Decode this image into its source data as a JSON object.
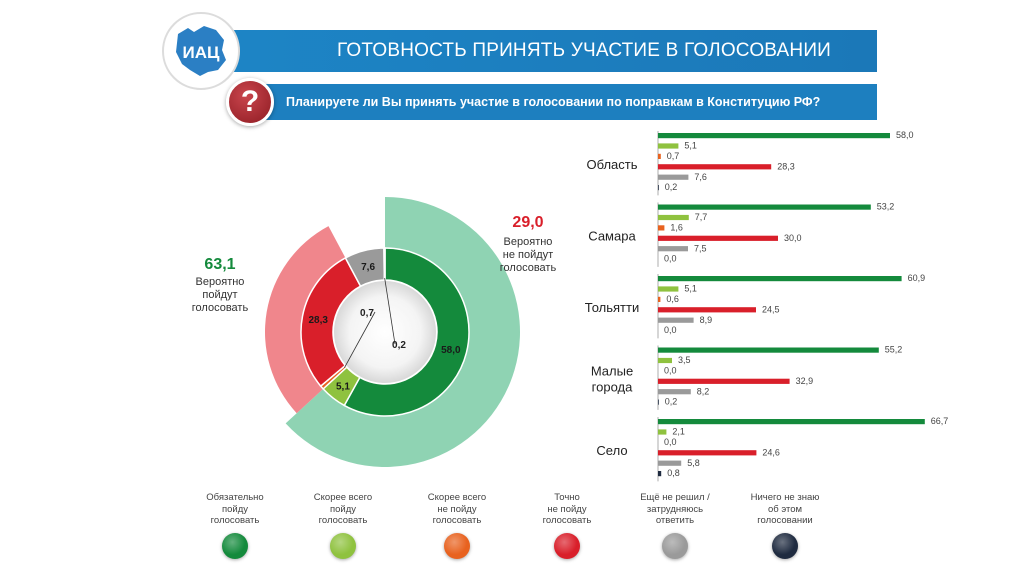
{
  "header": {
    "logo_text": "ИАЦ",
    "title": "ГОТОВНОСТЬ ПРИНЯТЬ УЧАСТИЕ В ГОЛОСОВАНИИ",
    "question_icon": "?",
    "question": "Планируете ли Вы принять участие в голосовании по поправкам в Конституцию РФ?"
  },
  "colors": {
    "brand_blue": "#1d85c6",
    "dark_green": "#148a3c",
    "light_green": "#8fc23f",
    "orange": "#e8621f",
    "red": "#d91f2a",
    "grey": "#9a9a9a",
    "navy": "#1f2b40",
    "outer_green": "#8fd3b3",
    "outer_red": "#f0868c"
  },
  "summary": {
    "likely_yes_value": "63,1",
    "likely_yes_text": [
      "Вероятно",
      "пойдут",
      "голосовать"
    ],
    "likely_no_value": "29,0",
    "likely_no_text": [
      "Вероятно",
      "не пойдут",
      "голосовать"
    ]
  },
  "legend": [
    {
      "label": [
        "Обязательно",
        "пойду",
        "голосовать"
      ],
      "color": "#148a3c"
    },
    {
      "label": [
        "Скорее всего",
        "пойду",
        "голосовать"
      ],
      "color": "#8fc23f"
    },
    {
      "label": [
        "Скорее всего",
        "не пойду",
        "голосовать"
      ],
      "color": "#e8621f"
    },
    {
      "label": [
        "Точно",
        "не пойду",
        "голосовать"
      ],
      "color": "#d91f2a"
    },
    {
      "label": [
        "Ещё не решил /",
        "затрудняюсь",
        "ответить"
      ],
      "color": "#9a9a9a"
    },
    {
      "label": [
        "Ничего не знаю",
        "об этом",
        "голосовании"
      ],
      "color": "#1f2b40"
    }
  ],
  "chart_data": [
    {
      "type": "pie",
      "title": "Область (кольцевая диаграмма)",
      "inner_ring": {
        "categories": [
          "Обязательно пойду голосовать",
          "Скорее всего пойду голосовать",
          "Скорее всего не пойду голосовать",
          "Точно не пойду голосовать",
          "Ещё не решил / затрудняюсь ответить",
          "Ничего не знаю об этом голосовании"
        ],
        "values": [
          58.0,
          5.1,
          0.7,
          28.3,
          7.6,
          0.2
        ],
        "labels": [
          "58,0",
          "5,1",
          "0,7",
          "28,3",
          "7,6",
          "0,2"
        ]
      },
      "outer_ring": {
        "categories": [
          "Вероятно пойдут голосовать",
          "Вероятно не пойдут голосовать"
        ],
        "values": [
          63.1,
          29.0
        ],
        "labels": [
          "63,1",
          "29,0"
        ]
      }
    },
    {
      "type": "bar",
      "orientation": "horizontal",
      "categories": [
        "Область",
        "Самара",
        "Тольятти",
        "Малые города",
        "Село"
      ],
      "category_lines": [
        [
          "Область"
        ],
        [
          "Самара"
        ],
        [
          "Тольятти"
        ],
        [
          "Малые",
          "города"
        ],
        [
          "Село"
        ]
      ],
      "series": [
        {
          "name": "Обязательно пойду голосовать",
          "values": [
            58.0,
            53.2,
            60.9,
            55.2,
            66.7
          ],
          "labels": [
            "58,0",
            "53,2",
            "60,9",
            "55,2",
            "66,7"
          ]
        },
        {
          "name": "Скорее всего пойду голосовать",
          "values": [
            5.1,
            7.7,
            5.1,
            3.5,
            2.1
          ],
          "labels": [
            "5,1",
            "7,7",
            "5,1",
            "3,5",
            "2,1"
          ]
        },
        {
          "name": "Скорее всего не пойду голосовать",
          "values": [
            0.7,
            1.6,
            0.6,
            0.0,
            0.0
          ],
          "labels": [
            "0,7",
            "1,6",
            "0,6",
            "0,0",
            "0,0"
          ]
        },
        {
          "name": "Точно не пойду голосовать",
          "values": [
            28.3,
            30.0,
            24.5,
            32.9,
            24.6
          ],
          "labels": [
            "28,3",
            "30,0",
            "24,5",
            "32,9",
            "24,6"
          ]
        },
        {
          "name": "Ещё не решил / затрудняюсь ответить",
          "values": [
            7.6,
            7.5,
            8.9,
            8.2,
            5.8
          ],
          "labels": [
            "7,6",
            "7,5",
            "8,9",
            "8,2",
            "5,8"
          ]
        },
        {
          "name": "Ничего не знаю об этом голосовании",
          "values": [
            0.2,
            0.0,
            0.0,
            0.2,
            0.8
          ],
          "labels": [
            "0,2",
            "0,0",
            "0,0",
            "0,2",
            "0,8"
          ]
        }
      ]
    }
  ]
}
